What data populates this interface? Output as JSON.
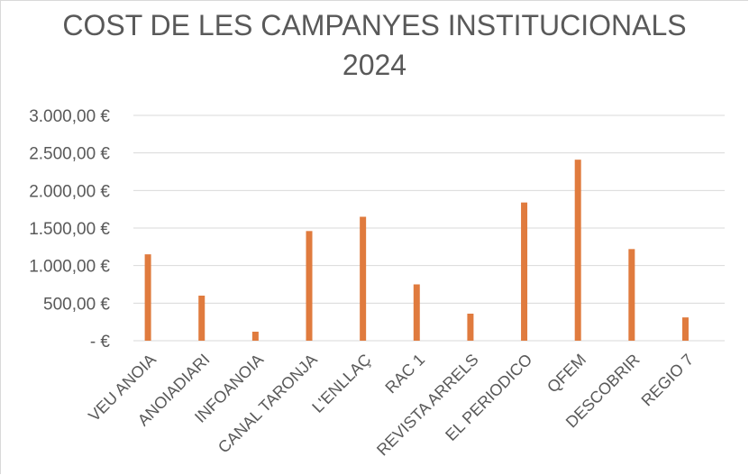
{
  "chart_data": {
    "type": "bar",
    "title_line1": "COST DE LES CAMPANYES INSTITUCIONALS",
    "title_line2": "2024",
    "categories": [
      "VEU ANOIA",
      "ANOIADIARI",
      "INFOANOIA",
      "CANAL TARONJA",
      "L'ENLLAÇ",
      "RAC 1",
      "REVISTA ARRELS",
      "EL PERIODICO",
      "QFEM",
      "DESCOBRIR",
      "REGIO 7"
    ],
    "series": [
      {
        "values": [
          [
            1150,
            0
          ],
          [
            600,
            0
          ],
          [
            120,
            0
          ],
          [
            1460,
            0
          ],
          [
            1650,
            0
          ],
          [
            750,
            0
          ],
          [
            360,
            0
          ],
          [
            1840,
            0
          ],
          [
            2410,
            0
          ],
          [
            1220,
            0
          ],
          [
            310,
            0
          ]
        ]
      }
    ],
    "ylim": [
      0,
      3000
    ],
    "yticks": [
      0,
      500,
      1000,
      1500,
      2000,
      2500,
      3000
    ],
    "ytick_labels": [
      "-   €",
      "500,00 €",
      "1.000,00 €",
      "1.500,00 €",
      "2.000,00 €",
      "2.500,00 €",
      "3.000,00 €"
    ],
    "grid": true,
    "bar_color": "#E07B3E"
  }
}
